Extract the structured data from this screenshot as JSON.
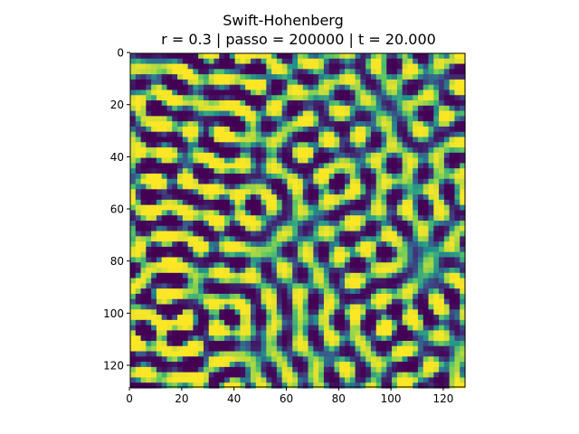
{
  "chart_data": {
    "type": "heatmap",
    "title": "Swift-Hohenberg",
    "subtitle": "r = 0.3 | passo = 200000 | t = 20.000",
    "xlabel": "",
    "ylabel": "",
    "grid_size": 128,
    "xlim": [
      0,
      128
    ],
    "ylim": [
      128,
      0
    ],
    "x_ticks": [
      "0",
      "20",
      "40",
      "60",
      "80",
      "100",
      "120"
    ],
    "y_ticks": [
      "0",
      "20",
      "40",
      "60",
      "80",
      "100",
      "120"
    ],
    "colormap": "viridis",
    "colors": [
      "#440154",
      "#3b528b",
      "#21918c",
      "#5ec962",
      "#fde725"
    ],
    "grid": false
  }
}
